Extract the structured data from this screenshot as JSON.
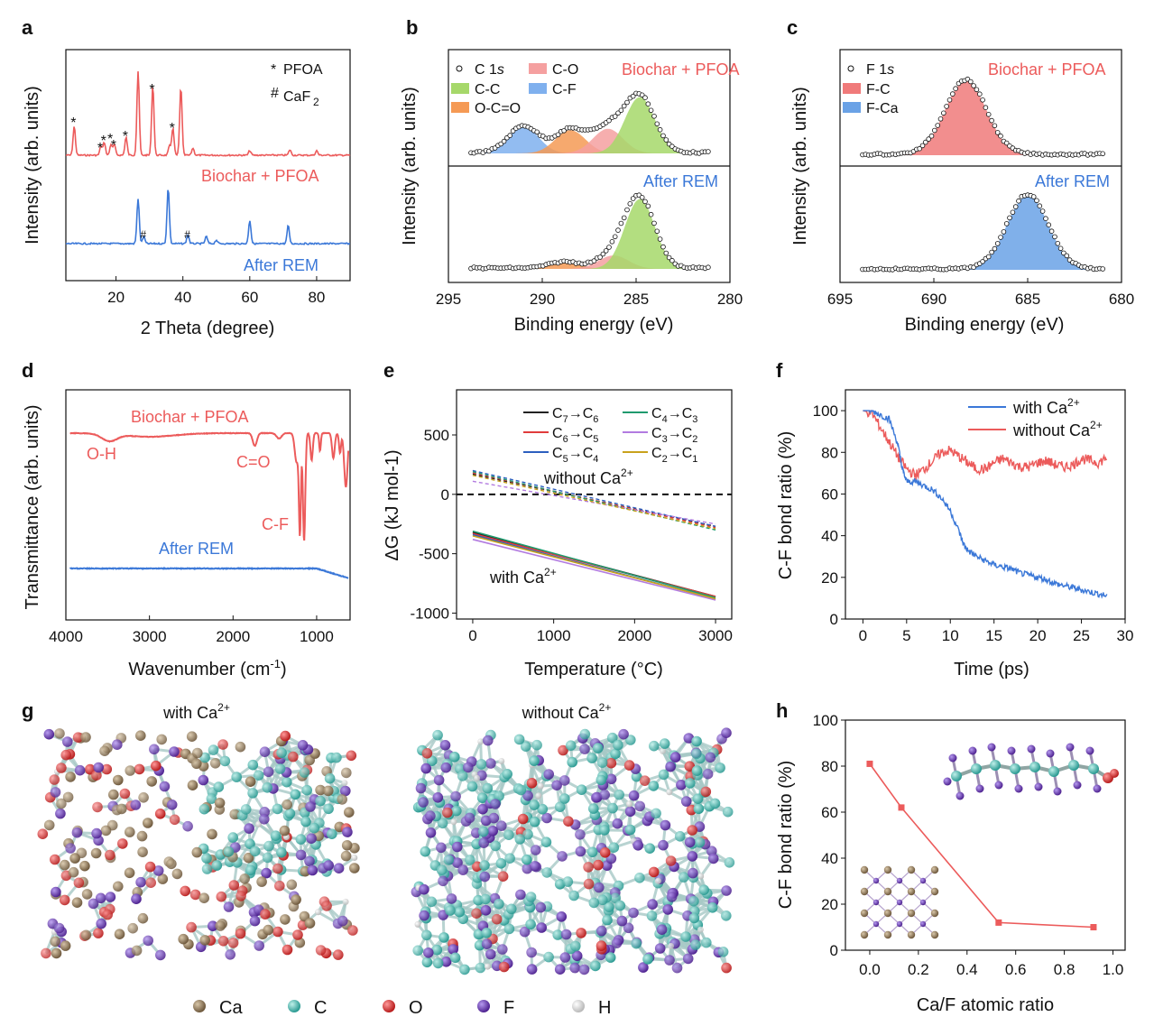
{
  "panels": {
    "a": {
      "label": "a",
      "xlabel": "2 Theta (degree)",
      "ylabel": "Intensity (arb. units)",
      "legend": {
        "pfoa_sym": "*",
        "pfoa": "PFOA",
        "caf2_sym": "#",
        "caf2": "CaF",
        "caf2_sub": "2"
      },
      "top_label": "Biochar + PFOA",
      "bottom_label": "After REM"
    },
    "b": {
      "label": "b",
      "xlabel": "Binding energy (eV)",
      "ylabel": "Intensity (arb. units)",
      "legend": {
        "c1s": "C 1",
        "c1s_it": "s",
        "cc": "C-C",
        "occo": "O-C=O",
        "co": "C-O",
        "cf": "C-F"
      },
      "top_label": "Biochar + PFOA",
      "bottom_label": "After REM"
    },
    "c": {
      "label": "c",
      "xlabel": "Binding energy (eV)",
      "ylabel": "Intensity (arb. units)",
      "legend": {
        "f1s": "F 1",
        "f1s_it": "s",
        "fc": "F-C",
        "fca": "F-Ca"
      },
      "top_label": "Biochar + PFOA",
      "bottom_label": "After REM"
    },
    "d": {
      "label": "d",
      "xlabel": "Wavenumber (cm",
      "xlabel_sup": "-1",
      "xlabel_end": ")",
      "ylabel": "Transmittance (arb. units)",
      "top_label": "Biochar + PFOA",
      "bottom_label": "After REM",
      "annot_oh": "O-H",
      "annot_co": "C=O",
      "annot_cf": "C-F"
    },
    "e": {
      "label": "e",
      "xlabel": "Temperature (°C)",
      "ylabel": "ΔG (kJ mol-1)",
      "without": "without Ca",
      "with": "with Ca",
      "ion_sup": "2+"
    },
    "f": {
      "label": "f",
      "xlabel": "Time (ps)",
      "ylabel": "C-F bond ratio (%)",
      "legend_with": "with Ca",
      "legend_without": "without Ca",
      "ion_sup": "2+"
    },
    "g": {
      "label": "g",
      "title_with": "with Ca",
      "title_without": "without Ca",
      "ion_sup": "2+"
    },
    "h": {
      "label": "h",
      "xlabel": "Ca/F atomic ratio",
      "ylabel": "C-F bond ratio (%)"
    }
  },
  "atom_legend": [
    {
      "symbol": "Ca",
      "color": "#8a7355"
    },
    {
      "symbol": "C",
      "color": "#3fb2aa"
    },
    {
      "symbol": "O",
      "color": "#d92b2b"
    },
    {
      "symbol": "F",
      "color": "#6a3aa8"
    },
    {
      "symbol": "H",
      "color": "#dcdcdc"
    }
  ],
  "colors": {
    "red": "#ec5b5b",
    "blue": "#3b78d8",
    "green": "#8cc63f",
    "orange": "#f0883a",
    "pink": "#f08a8a",
    "lightblue": "#6aa2e6"
  },
  "chart_data": [
    {
      "id": "a",
      "type": "line",
      "title": "",
      "xlabel": "2 Theta (degree)",
      "ylabel": "Intensity (arb. units)",
      "xlim": [
        5,
        90
      ],
      "xticks": [
        20,
        40,
        60,
        80
      ],
      "series": [
        {
          "name": "Biochar + PFOA",
          "peaks_2theta": [
            7.5,
            15.5,
            16.5,
            18.5,
            19.5,
            23,
            26.6,
            31,
            36,
            37,
            39.4,
            43,
            60,
            72,
            80
          ],
          "marked_PFOA": [
            7.5,
            15.5,
            16.5,
            18.5,
            19.5,
            23,
            31,
            37
          ]
        },
        {
          "name": "After REM",
          "peaks_2theta": [
            26.6,
            28.3,
            35.6,
            41.5,
            47,
            50,
            60,
            71.5
          ],
          "marked_CaF2": [
            28.3,
            41.5
          ]
        }
      ]
    },
    {
      "id": "b",
      "type": "area",
      "title": "C 1s",
      "xlabel": "Binding energy (eV)",
      "ylabel": "Intensity (arb. units)",
      "xlim": [
        295,
        280
      ],
      "xticks": [
        295,
        290,
        285,
        280
      ],
      "series": [
        {
          "name": "Biochar + PFOA",
          "components": [
            {
              "name": "C-F",
              "center": 291.0,
              "height": 0.38
            },
            {
              "name": "O-C=O",
              "center": 288.5,
              "height": 0.33
            },
            {
              "name": "C-O",
              "center": 286.5,
              "height": 0.35
            },
            {
              "name": "C-C",
              "center": 284.8,
              "height": 0.8
            }
          ]
        },
        {
          "name": "After REM",
          "components": [
            {
              "name": "O-C=O",
              "center": 288.8,
              "height": 0.08
            },
            {
              "name": "C-O",
              "center": 286.2,
              "height": 0.17
            },
            {
              "name": "C-C",
              "center": 284.8,
              "height": 0.88
            }
          ]
        }
      ]
    },
    {
      "id": "c",
      "type": "area",
      "title": "F 1s",
      "xlabel": "Binding energy (eV)",
      "ylabel": "Intensity (arb. units)",
      "xlim": [
        695,
        680
      ],
      "xticks": [
        695,
        690,
        685,
        680
      ],
      "series": [
        {
          "name": "Biochar + PFOA",
          "components": [
            {
              "name": "F-C",
              "center": 688.3,
              "height": 0.88
            }
          ]
        },
        {
          "name": "After REM",
          "components": [
            {
              "name": "F-Ca",
              "center": 685.0,
              "height": 0.88
            }
          ]
        }
      ]
    },
    {
      "id": "d",
      "type": "line",
      "title": "",
      "xlabel": "Wavenumber (cm-1)",
      "ylabel": "Transmittance (arb. units)",
      "xlim": [
        4000,
        600
      ],
      "xticks": [
        4000,
        3000,
        2000,
        1000
      ],
      "series": [
        {
          "name": "Biochar + PFOA",
          "bands": [
            {
              "label": "O-H",
              "x": 3500
            },
            {
              "label": "C=O",
              "x": 1750
            },
            {
              "label": "C-F",
              "x": 1150
            }
          ]
        },
        {
          "name": "After REM",
          "bands": []
        }
      ]
    },
    {
      "id": "e",
      "type": "line",
      "title": "",
      "xlabel": "Temperature (°C)",
      "ylabel": "ΔG (kJ mol-1)",
      "xlim": [
        -200,
        3200
      ],
      "ylim": [
        -1050,
        880
      ],
      "xticks": [
        0,
        1000,
        2000,
        3000
      ],
      "yticks": [
        -1000,
        -500,
        0,
        500
      ],
      "series": [
        {
          "name": "C7→C6",
          "color": "#222222",
          "with_Ca": [
            [
              0,
              -320
            ],
            [
              3000,
              -860
            ]
          ],
          "without_Ca": [
            [
              0,
              170
            ],
            [
              3000,
              -270
            ]
          ]
        },
        {
          "name": "C6→C5",
          "color": "#e03c3c",
          "with_Ca": [
            [
              0,
              -330
            ],
            [
              3000,
              -860
            ]
          ],
          "without_Ca": [
            [
              0,
              180
            ],
            [
              3000,
              -280
            ]
          ]
        },
        {
          "name": "C5→C4",
          "color": "#2c5fbf",
          "with_Ca": [
            [
              0,
              -340
            ],
            [
              3000,
              -880
            ]
          ],
          "without_Ca": [
            [
              0,
              200
            ],
            [
              3000,
              -270
            ]
          ]
        },
        {
          "name": "C4→C3",
          "color": "#1f9a6e",
          "with_Ca": [
            [
              0,
              -310
            ],
            [
              3000,
              -870
            ]
          ],
          "without_Ca": [
            [
              0,
              190
            ],
            [
              3000,
              -300
            ]
          ]
        },
        {
          "name": "C3→C2",
          "color": "#b27be0",
          "with_Ca": [
            [
              0,
              -380
            ],
            [
              3000,
              -890
            ]
          ],
          "without_Ca": [
            [
              0,
              110
            ],
            [
              3000,
              -250
            ]
          ]
        },
        {
          "name": "C2→C1",
          "color": "#c9a21c",
          "with_Ca": [
            [
              0,
              -350
            ],
            [
              3000,
              -880
            ]
          ],
          "without_Ca": [
            [
              0,
              160
            ],
            [
              3000,
              -290
            ]
          ]
        }
      ]
    },
    {
      "id": "f",
      "type": "line",
      "title": "",
      "xlabel": "Time (ps)",
      "ylabel": "C-F bond ratio (%)",
      "xlim": [
        -2,
        30
      ],
      "ylim": [
        0,
        110
      ],
      "xticks": [
        0,
        5,
        10,
        15,
        20,
        25,
        30
      ],
      "yticks": [
        0,
        20,
        40,
        60,
        80,
        100
      ],
      "series": [
        {
          "name": "with Ca2+",
          "color": "#3b78d8",
          "x": [
            0,
            1,
            2,
            3,
            4,
            4.5,
            5,
            6,
            7,
            8,
            9,
            10,
            11,
            11.5,
            12,
            13,
            14,
            15,
            16,
            17,
            18,
            19,
            20,
            21,
            22,
            23,
            24,
            25,
            26,
            27,
            28
          ],
          "y": [
            100,
            100,
            98,
            96,
            84,
            72,
            66,
            66,
            64,
            62,
            58,
            52,
            42,
            36,
            33,
            30,
            28,
            26,
            25,
            24,
            22,
            21,
            20,
            19,
            17,
            16,
            15,
            14,
            13,
            12,
            11
          ]
        },
        {
          "name": "without Ca2+",
          "color": "#ec5b5b",
          "x": [
            0,
            1,
            2,
            3,
            4,
            5,
            6,
            7,
            8,
            9,
            10,
            11,
            12,
            13,
            14,
            15,
            16,
            17,
            18,
            19,
            20,
            21,
            22,
            23,
            24,
            25,
            26,
            27,
            28
          ],
          "y": [
            100,
            99,
            92,
            85,
            78,
            72,
            69,
            72,
            76,
            80,
            81,
            78,
            75,
            72,
            72,
            75,
            77,
            75,
            73,
            73,
            75,
            76,
            74,
            73,
            74,
            77,
            76,
            75,
            78
          ]
        }
      ]
    },
    {
      "id": "h",
      "type": "line",
      "title": "",
      "xlabel": "Ca/F atomic ratio",
      "ylabel": "C-F bond ratio (%)",
      "xlim": [
        -0.1,
        1.05
      ],
      "ylim": [
        0,
        100
      ],
      "xticks": [
        0.0,
        0.2,
        0.4,
        0.6,
        0.8,
        1.0
      ],
      "yticks": [
        0,
        20,
        40,
        60,
        80,
        100
      ],
      "series": [
        {
          "name": "C-F bond ratio",
          "color": "#ec5b5b",
          "x": [
            0.0,
            0.13,
            0.53,
            0.92
          ],
          "y": [
            81,
            62,
            12,
            10
          ]
        }
      ]
    }
  ]
}
